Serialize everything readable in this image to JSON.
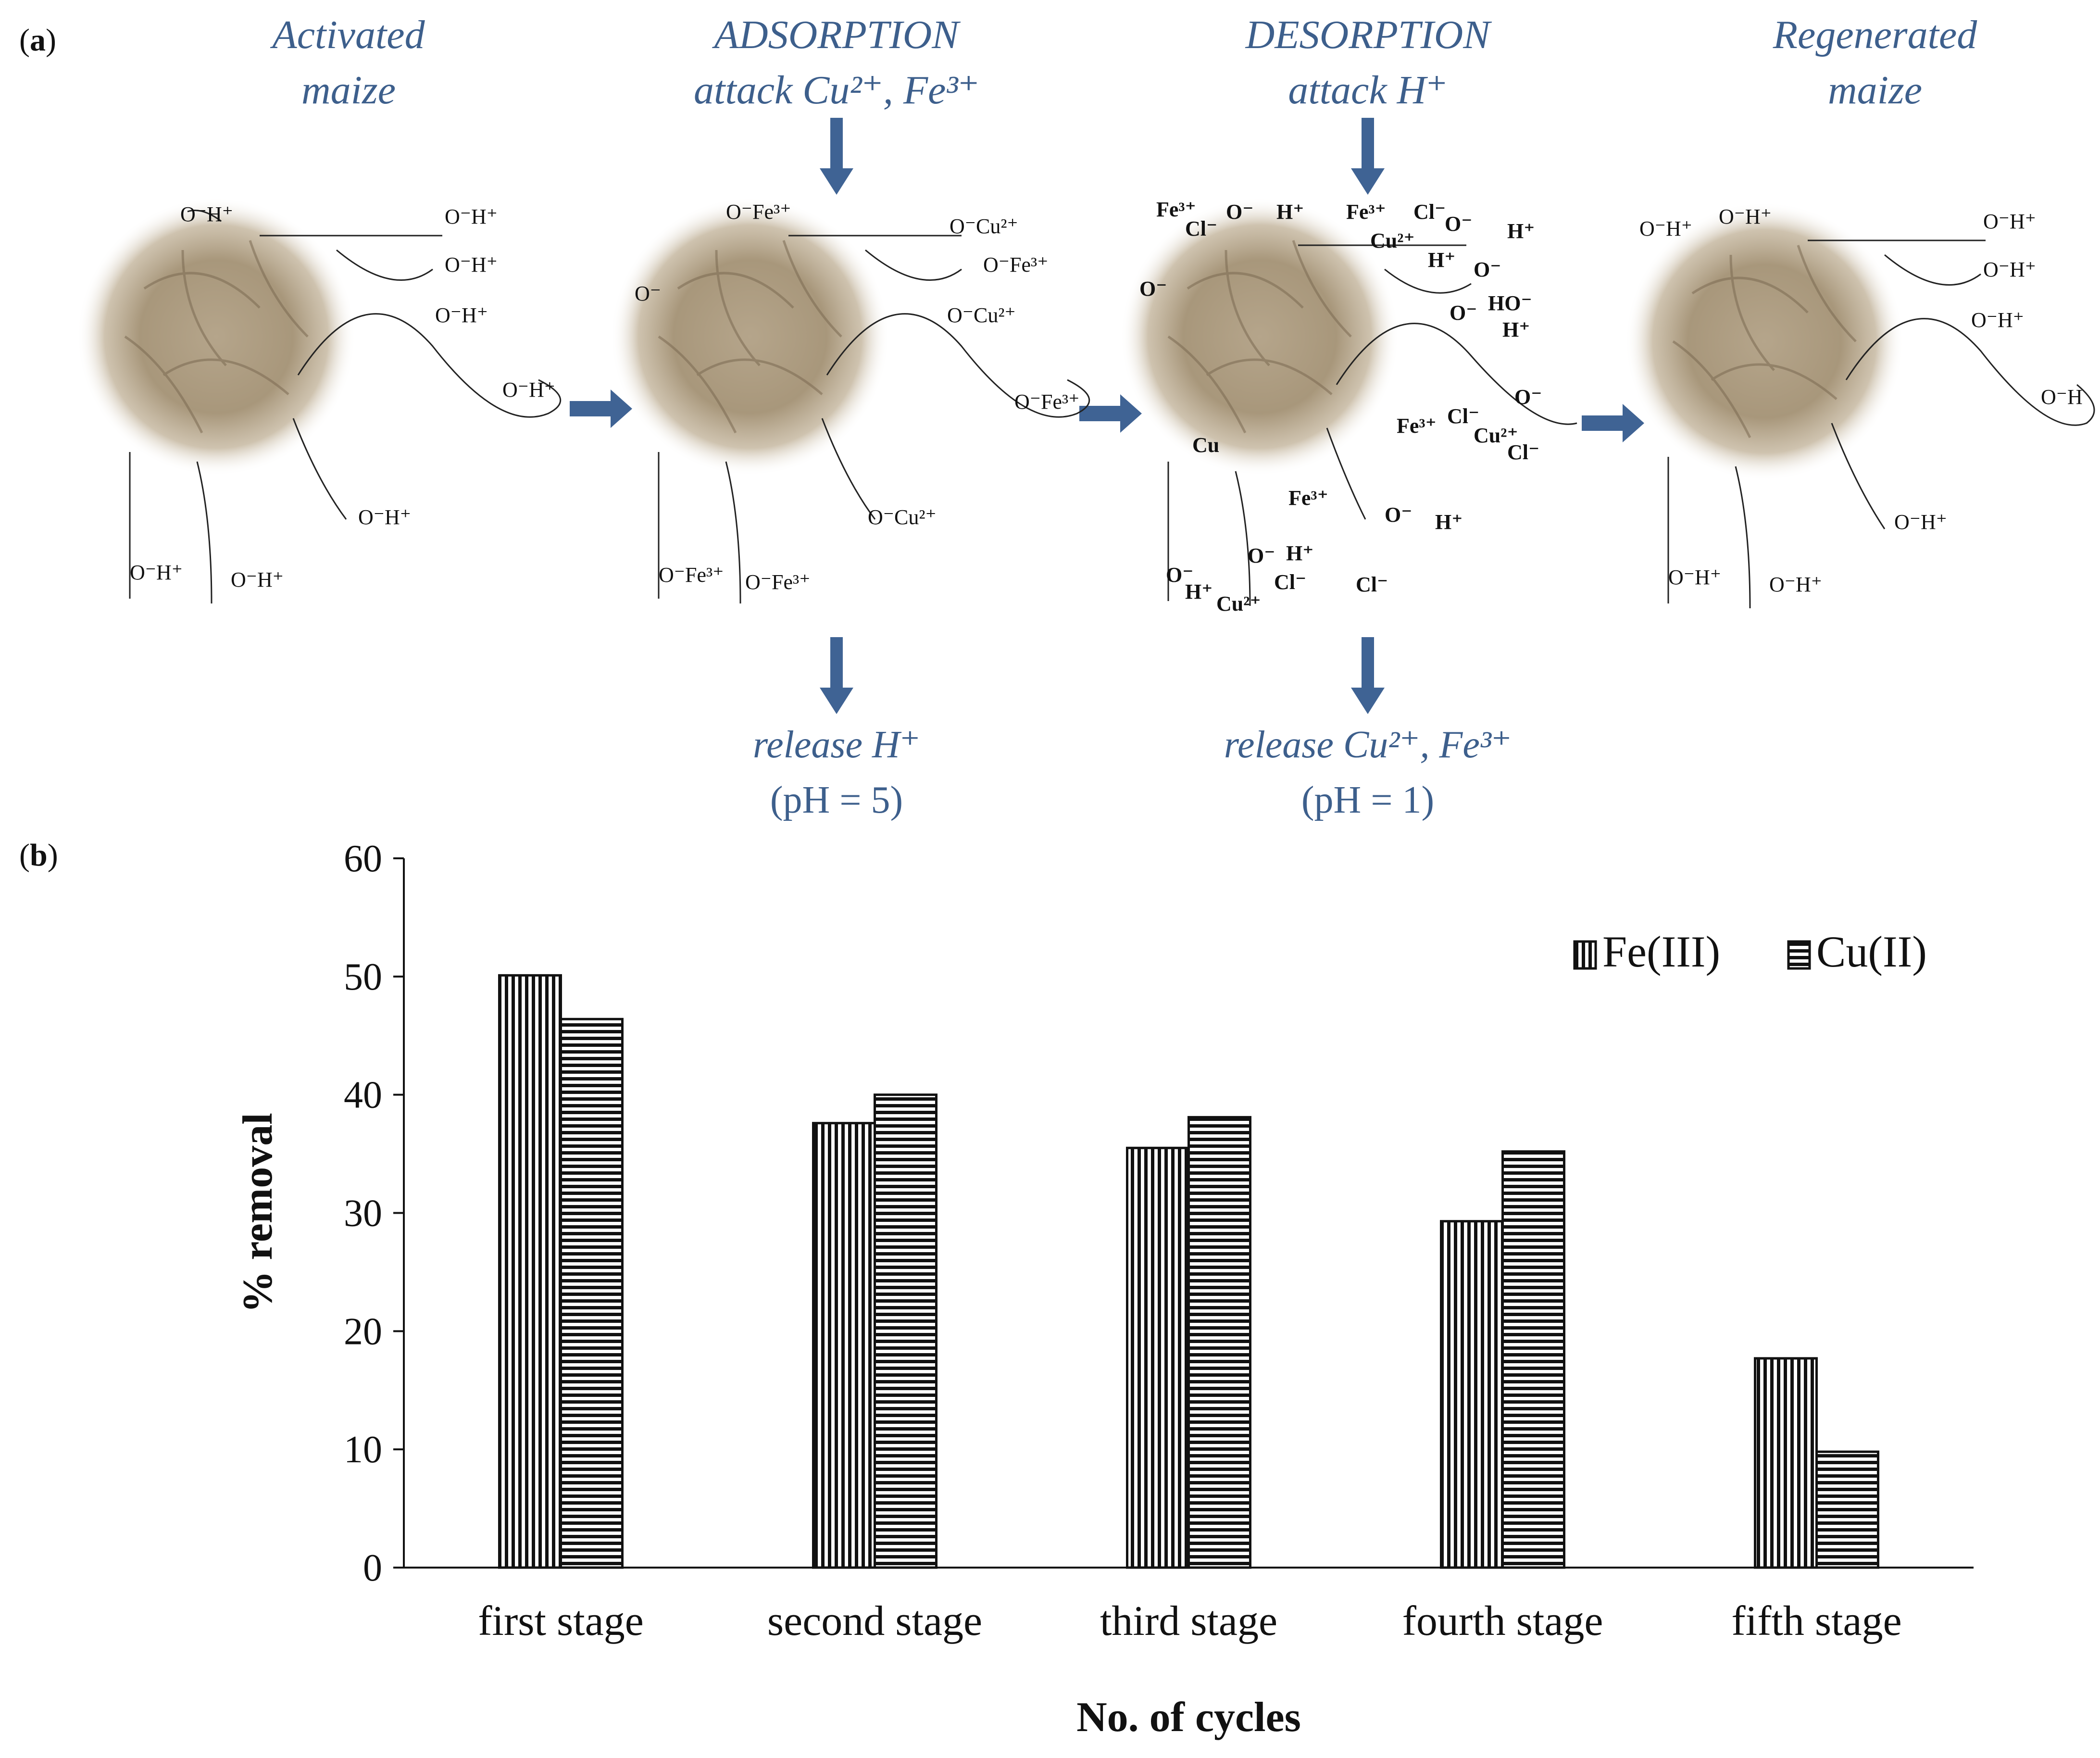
{
  "panel_a": {
    "label_letter": "a",
    "stages": [
      {
        "line1": "Activated",
        "line2": "maize"
      },
      {
        "line1": "ADSORPTION",
        "line2": "attack Cu²⁺, Fe³⁺"
      },
      {
        "line1": "DESORPTION",
        "line2": "attack H⁺"
      },
      {
        "line1": "Regenerated",
        "line2": "maize"
      }
    ],
    "releases": [
      {
        "line1": "release H⁺",
        "line2": "(pH = 5)"
      },
      {
        "line1": "release Cu²⁺, Fe³⁺",
        "line2": "(pH = 1)"
      }
    ],
    "species": {
      "activated": [
        "O⁻H⁺",
        "O⁻H⁺",
        "O⁻H⁺",
        "O⁻H⁺",
        "O⁻H⁺",
        "O⁻H⁺",
        "O⁻H⁺",
        "O⁻H⁺"
      ],
      "adsorption": [
        "O⁻Fe³⁺",
        "O⁻Cu²⁺",
        "O⁻Fe³⁺",
        "O⁻Cu²⁺",
        "O⁻Fe³⁺",
        "O⁻Cu²⁺",
        "O⁻Fe³⁺",
        "O⁻Fe³⁺",
        "O⁻"
      ],
      "desorption": [
        "Fe³⁺",
        "Cl⁻",
        "O⁻",
        "H⁺",
        "Fe³⁺",
        "Cl⁻",
        "O⁻",
        "H⁺",
        "Cu²⁺",
        "H⁺",
        "O⁻",
        "O⁻",
        "O⁻",
        "HO⁻",
        "H⁺",
        "O⁻",
        "Fe³⁺",
        "Cl⁻",
        "Cu²⁺",
        "Cl⁻",
        "Fe³⁺",
        "O⁻",
        "H⁺",
        "O⁻",
        "H⁺",
        "O⁻",
        "H⁺",
        "Cl⁻",
        "Cl⁻",
        "Cu²⁺",
        "Cu"
      ],
      "regenerated": [
        "O⁻H⁺",
        "O⁻H⁺",
        "O⁻H⁺",
        "O⁻H⁺",
        "O⁻H⁺",
        "O⁻H",
        "O⁻H⁺",
        "O⁻H⁺",
        "O⁻H⁺"
      ]
    }
  },
  "panel_b": {
    "label_letter": "b"
  },
  "colors": {
    "accent_blue": "#3d5f8c",
    "arrow_blue": "#3f6394",
    "ink": "#111111"
  },
  "chart_data": {
    "type": "bar",
    "title": "",
    "xlabel": "No. of cycles",
    "ylabel": "% removal",
    "ylim": [
      0,
      60
    ],
    "yticks": [
      "0",
      "10",
      "20",
      "30",
      "40",
      "50",
      "60"
    ],
    "categories": [
      "first stage",
      "second stage",
      "third stage",
      "fourth stage",
      "fifth stage"
    ],
    "series": [
      {
        "name": "Fe(III)",
        "pattern": "vertical-stripes",
        "values": [
          50.1,
          37.6,
          35.5,
          29.3,
          17.7
        ]
      },
      {
        "name": "Cu(II)",
        "pattern": "horizontal-stripes",
        "values": [
          46.4,
          40.0,
          38.1,
          35.2,
          9.8
        ]
      }
    ],
    "legend": "top-right"
  }
}
